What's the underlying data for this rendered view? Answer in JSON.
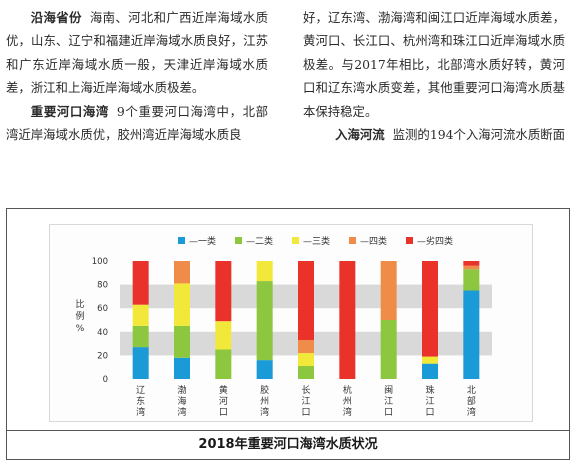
{
  "text": {
    "left": {
      "p1_term": "沿海省份",
      "p1_body": "海南、河北和广西近岸海域水质优，山东、辽宁和福建近岸海域水质良好，江苏和广东近岸海域水质一般，天津近岸海域水质差，浙江和上海近岸海域水质极差。",
      "p2_term": "重要河口海湾",
      "p2_body": "9个重要河口海湾中，北部湾近岸海域水质优，胶州湾近岸海域水质良"
    },
    "right": {
      "p1_body": "好，辽东湾、渤海湾和闽江口近岸海域水质差，黄河口、长江口、杭州湾和珠江口近岸海域水质极差。与2017年相比，北部湾水质好转，黄河口和辽东湾水质变差，其他重要河口海湾水质基本保持稳定。",
      "p2_term": "入海河流",
      "p2_body": "监测的194个入海河流水质断面"
    }
  },
  "figure": {
    "caption": "2018年重要河口海湾水质状况"
  },
  "colors": {
    "grade1": "#1a9ad6",
    "grade2": "#8dc63f",
    "grade3": "#f2e83a",
    "grade4": "#f08c4a",
    "grade5": "#e8322a"
  },
  "chart_data": {
    "type": "bar",
    "stacked": true,
    "ylabel": "比例%",
    "ylim": [
      0,
      100
    ],
    "yticks": [
      0,
      20,
      40,
      60,
      80,
      100
    ],
    "grid": "alternating gray bands",
    "legend_position": "top",
    "categories": [
      "辽东湾",
      "渤海湾",
      "黄河口",
      "胶州湾",
      "长江口",
      "杭州湾",
      "闽江口",
      "珠江口",
      "北部湾"
    ],
    "series": [
      {
        "name": "一类",
        "color": "#1a9ad6",
        "values": [
          27,
          18,
          0,
          16,
          0,
          0,
          0,
          13,
          75
        ]
      },
      {
        "name": "二类",
        "color": "#8dc63f",
        "values": [
          18,
          27,
          25,
          67,
          11,
          0,
          50,
          0,
          18
        ]
      },
      {
        "name": "三类",
        "color": "#f2e83a",
        "values": [
          18,
          36,
          24,
          17,
          11,
          0,
          0,
          6,
          0
        ]
      },
      {
        "name": "四类",
        "color": "#f08c4a",
        "values": [
          0,
          19,
          0,
          0,
          11,
          0,
          50,
          0,
          3
        ]
      },
      {
        "name": "劣四类",
        "color": "#e8322a",
        "values": [
          37,
          0,
          51,
          0,
          67,
          100,
          0,
          81,
          4
        ]
      }
    ]
  }
}
